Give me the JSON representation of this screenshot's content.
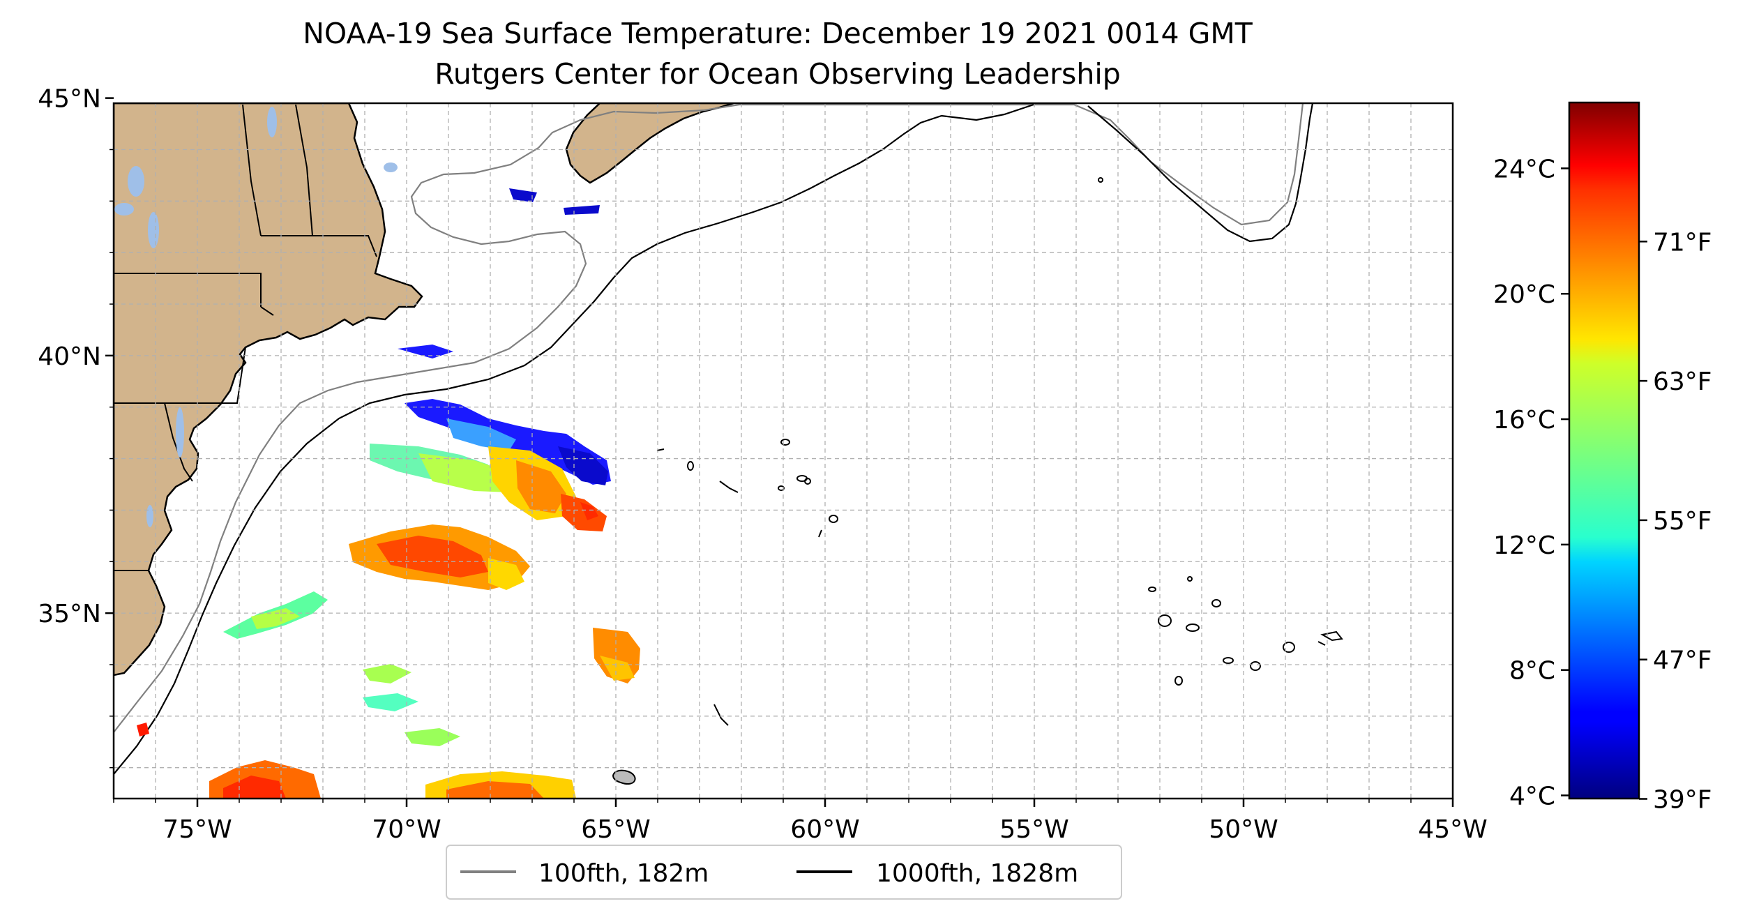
{
  "title": "NOAA-19 Sea Surface Temperature: December 19 2021 0014 GMT",
  "subtitle": "Rutgers Center for Ocean Observing Leadership",
  "map": {
    "lon_range": [
      -77,
      -45
    ],
    "lat_range": [
      31.4,
      44.9
    ],
    "x_ticks": [
      {
        "lon": -75,
        "label": "75°W"
      },
      {
        "lon": -70,
        "label": "70°W"
      },
      {
        "lon": -65,
        "label": "65°W"
      },
      {
        "lon": -60,
        "label": "60°W"
      },
      {
        "lon": -55,
        "label": "55°W"
      },
      {
        "lon": -50,
        "label": "50°W"
      },
      {
        "lon": -45,
        "label": "45°W"
      }
    ],
    "y_ticks": [
      {
        "lat": 45,
        "label": "45°N"
      },
      {
        "lat": 40,
        "label": "40°N"
      },
      {
        "lat": 35,
        "label": "35°N"
      }
    ],
    "minor_grid_step_deg": 1,
    "grid": true,
    "land_color": "#d2b48c",
    "lake_color": "#9fbfe8",
    "ocean_color": "#ffffff"
  },
  "legend": {
    "placement": "bottom-center",
    "items": [
      {
        "label": "100fth, 182m",
        "color": "#808080"
      },
      {
        "label": "1000fth, 1828m",
        "color": "#000000"
      }
    ]
  },
  "colorbar": {
    "colormap": "jet",
    "range_c": [
      3.9,
      26.1
    ],
    "celsius_ticks": [
      {
        "value": 4,
        "label": "4°C"
      },
      {
        "value": 8,
        "label": "8°C"
      },
      {
        "value": 12,
        "label": "12°C"
      },
      {
        "value": 16,
        "label": "16°C"
      },
      {
        "value": 20,
        "label": "20°C"
      },
      {
        "value": 24,
        "label": "24°C"
      }
    ],
    "fahrenheit_ticks": [
      {
        "value_f": 39,
        "label": "39°F"
      },
      {
        "value_f": 47,
        "label": "47°F"
      },
      {
        "value_f": 55,
        "label": "55°F"
      },
      {
        "value_f": 63,
        "label": "63°F"
      },
      {
        "value_f": 71,
        "label": "71°F"
      }
    ]
  }
}
